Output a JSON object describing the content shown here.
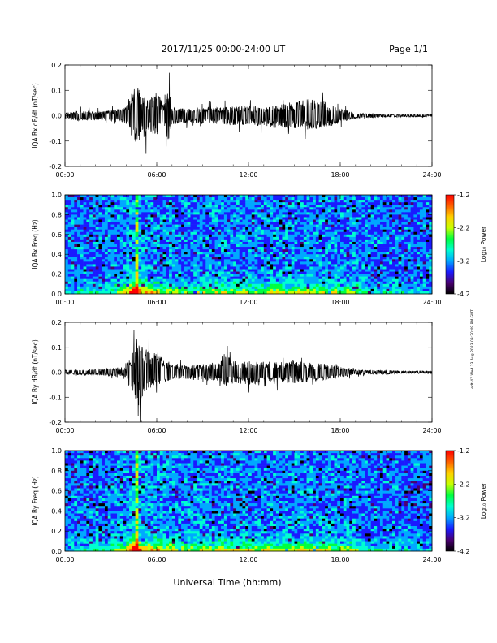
{
  "header": {
    "date_range": "2017/11/25  00:00-24:00 UT",
    "page": "Page 1/1"
  },
  "footer": {
    "xlabel": "Universal Time (hh:mm)",
    "stamp": "edt-47 Wed 23 Aug 2023 09:20:49 PM GMT"
  },
  "colors": {
    "background": "#ffffff",
    "trace": "#000000",
    "colormap": [
      "#000000",
      "#4a0070",
      "#1a1aff",
      "#00a8ff",
      "#00ffd0",
      "#00ff40",
      "#c8ff00",
      "#ffd000",
      "#ff6000",
      "#ff0000"
    ]
  },
  "chart_data": [
    {
      "type": "line",
      "id": "bx-waveform",
      "ylabel": "IQA Bx dB/dt (nT/sec)",
      "x_ticks": [
        "00:00",
        "06:00",
        "12:00",
        "18:00",
        "24:00"
      ],
      "xlim": [
        0,
        24
      ],
      "ylim": [
        -0.2,
        0.2
      ],
      "y_ticks": [
        "0.2",
        "0.1",
        "0.0",
        "-0.1",
        "-0.2"
      ],
      "envelope": {
        "x": [
          0,
          1,
          2,
          3,
          4,
          4.4,
          4.6,
          4.8,
          5.0,
          5.2,
          5.5,
          6.0,
          6.5,
          6.8,
          7.0,
          7.5,
          8,
          9,
          10,
          11,
          12,
          13,
          14,
          15,
          16,
          17,
          18,
          19,
          20,
          21,
          22,
          23,
          24
        ],
        "upper": [
          0.02,
          0.04,
          0.03,
          0.04,
          0.06,
          0.2,
          0.2,
          0.2,
          0.12,
          0.18,
          0.12,
          0.17,
          0.09,
          0.2,
          0.06,
          0.07,
          0.05,
          0.06,
          0.06,
          0.07,
          0.07,
          0.06,
          0.08,
          0.1,
          0.12,
          0.1,
          0.05,
          0.02,
          0.015,
          0.01,
          0.01,
          0.01,
          0.01
        ],
        "lower": [
          -0.02,
          -0.04,
          -0.03,
          -0.04,
          -0.06,
          -0.2,
          -0.2,
          -0.2,
          -0.13,
          -0.17,
          -0.12,
          -0.14,
          -0.09,
          -0.2,
          -0.06,
          -0.07,
          -0.05,
          -0.06,
          -0.06,
          -0.07,
          -0.07,
          -0.07,
          -0.1,
          -0.09,
          -0.1,
          -0.09,
          -0.05,
          -0.02,
          -0.015,
          -0.01,
          -0.01,
          -0.01,
          -0.01
        ]
      }
    },
    {
      "type": "heatmap",
      "id": "bx-spectrogram",
      "ylabel": "IQA Bx Freq (Hz)",
      "x_ticks": [
        "00:00",
        "06:00",
        "12:00",
        "18:00",
        "24:00"
      ],
      "xlim": [
        0,
        24
      ],
      "ylim": [
        0,
        1
      ],
      "y_ticks": [
        "1.0",
        "0.8",
        "0.6",
        "0.4",
        "0.2",
        "0.0"
      ],
      "colorbar": {
        "label": "Log₁₀ Power",
        "ticks": [
          "-1.2",
          "-2.2",
          "-3.2",
          "-4.2"
        ],
        "range": [
          -4.2,
          -1.2
        ]
      },
      "activity": {
        "x": [
          0,
          2,
          3,
          4,
          4.5,
          4.8,
          5.2,
          5.8,
          6.5,
          8,
          10,
          12,
          14,
          15.5,
          17,
          18.5,
          20,
          22,
          24
        ],
        "strength": [
          0.15,
          0.2,
          0.3,
          0.45,
          1.0,
          0.8,
          0.55,
          0.5,
          0.4,
          0.35,
          0.4,
          0.4,
          0.4,
          0.45,
          0.4,
          0.35,
          0.2,
          0.15,
          0.12
        ]
      }
    },
    {
      "type": "line",
      "id": "by-waveform",
      "ylabel": "IQA By dB/dt (nT/sec)",
      "x_ticks": [
        "00:00",
        "06:00",
        "12:00",
        "18:00",
        "24:00"
      ],
      "xlim": [
        0,
        24
      ],
      "ylim": [
        -0.2,
        0.2
      ],
      "y_ticks": [
        "0.2",
        "0.1",
        "0.0",
        "-0.1",
        "-0.2"
      ],
      "envelope": {
        "x": [
          0,
          1,
          2,
          3,
          4,
          4.4,
          4.6,
          4.8,
          5.0,
          5.2,
          5.5,
          6.0,
          6.5,
          7.0,
          7.5,
          8,
          9,
          10,
          10.5,
          11,
          12,
          13,
          14,
          15,
          16,
          17,
          18,
          19,
          20,
          21,
          22,
          23,
          24
        ],
        "upper": [
          0.015,
          0.02,
          0.02,
          0.03,
          0.04,
          0.15,
          0.2,
          0.2,
          0.2,
          0.17,
          0.18,
          0.14,
          0.1,
          0.06,
          0.05,
          0.05,
          0.06,
          0.06,
          0.17,
          0.08,
          0.08,
          0.08,
          0.07,
          0.09,
          0.07,
          0.06,
          0.04,
          0.02,
          0.015,
          0.015,
          0.01,
          0.01,
          0.01
        ],
        "lower": [
          -0.015,
          -0.02,
          -0.02,
          -0.03,
          -0.04,
          -0.15,
          -0.2,
          -0.2,
          -0.2,
          -0.17,
          -0.12,
          -0.1,
          -0.07,
          -0.06,
          -0.05,
          -0.05,
          -0.06,
          -0.06,
          -0.1,
          -0.08,
          -0.09,
          -0.08,
          -0.07,
          -0.08,
          -0.07,
          -0.06,
          -0.04,
          -0.02,
          -0.015,
          -0.015,
          -0.01,
          -0.01,
          -0.01
        ]
      }
    },
    {
      "type": "heatmap",
      "id": "by-spectrogram",
      "ylabel": "IQA By Freq (Hz)",
      "x_ticks": [
        "00:00",
        "06:00",
        "12:00",
        "18:00",
        "24:00"
      ],
      "xlim": [
        0,
        24
      ],
      "ylim": [
        0,
        1
      ],
      "y_ticks": [
        "1.0",
        "0.8",
        "0.6",
        "0.4",
        "0.2",
        "0.0"
      ],
      "colorbar": {
        "label": "Log₁₀ Power",
        "ticks": [
          "-1.2",
          "-2.2",
          "-3.2",
          "-4.2"
        ],
        "range": [
          -4.2,
          -1.2
        ]
      },
      "activity": {
        "x": [
          0,
          2,
          3,
          4,
          4.5,
          4.8,
          5.2,
          5.8,
          6.5,
          8,
          10,
          12,
          14,
          15.5,
          17,
          18.5,
          20,
          22,
          24
        ],
        "strength": [
          0.15,
          0.2,
          0.3,
          0.45,
          1.0,
          0.85,
          0.6,
          0.55,
          0.45,
          0.4,
          0.4,
          0.4,
          0.4,
          0.45,
          0.45,
          0.4,
          0.2,
          0.15,
          0.12
        ]
      }
    }
  ]
}
